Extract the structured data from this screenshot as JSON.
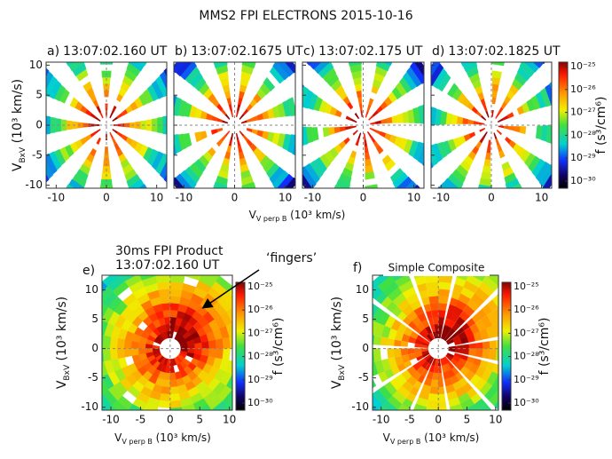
{
  "title": "MMS2 FPI ELECTRONS 2015-10-16",
  "panels": [
    {
      "label": "a)",
      "title": [
        "13:07:02.160 UT"
      ],
      "xlim": [
        -12,
        12
      ],
      "ylim": [
        -10.5,
        10.5
      ],
      "xticks": [
        -10,
        0,
        10
      ],
      "yticks": [
        10,
        5,
        0,
        -5,
        -10
      ]
    },
    {
      "label": "b)",
      "title": [
        "13:07:02.1675 UT"
      ],
      "xlim": [
        -12,
        12
      ],
      "ylim": [
        -10.5,
        10.5
      ],
      "xticks": [
        -10,
        0,
        10
      ],
      "yticks": [
        10,
        5,
        0,
        -5,
        -10
      ]
    },
    {
      "label": "c)",
      "title": [
        "13:07:02.175 UT"
      ],
      "xlim": [
        -12,
        12
      ],
      "ylim": [
        -10.5,
        10.5
      ],
      "xticks": [
        -10,
        0,
        10
      ],
      "yticks": [
        10,
        5,
        0,
        -5,
        -10
      ]
    },
    {
      "label": "d)",
      "title": [
        "13:07:02.1825 UT"
      ],
      "xlim": [
        -12,
        12
      ],
      "ylim": [
        -10.5,
        10.5
      ],
      "xticks": [
        -10,
        0,
        10
      ],
      "yticks": [
        10,
        5,
        0,
        -5,
        -10
      ]
    },
    {
      "label": "e)",
      "title": [
        "30ms FPI Product",
        "13:07:02.160 UT"
      ],
      "xlim": [
        -11.5,
        10.5
      ],
      "ylim": [
        -10.5,
        12.5
      ],
      "xticks": [
        -10,
        -5,
        0,
        5,
        10
      ],
      "yticks": [
        10,
        5,
        0,
        -5,
        -10
      ]
    },
    {
      "label": "f)",
      "title": [
        "Simple Composite"
      ],
      "xlim": [
        -11.5,
        10.5
      ],
      "ylim": [
        -10.5,
        12.5
      ],
      "xticks": [
        -10,
        -5,
        0,
        5,
        10
      ],
      "yticks": [
        10,
        5,
        0,
        -5,
        -10
      ]
    }
  ],
  "colorbar": {
    "clim": [
      1e-25,
      1e-30
    ],
    "label": "f (s³/cm⁶)",
    "ticks": [
      {
        "value": 1e-25,
        "label": "10⁻²⁵"
      },
      {
        "value": 1e-26,
        "label": "10⁻²⁶"
      },
      {
        "value": 1e-27,
        "label": "10⁻²⁷"
      },
      {
        "value": 1e-28,
        "label": "10⁻²⁸"
      },
      {
        "value": 1e-29,
        "label": "10⁻²⁹"
      },
      {
        "value": 1e-30,
        "label": "10⁻³⁰"
      }
    ]
  },
  "x_axis_label": {
    "symbol": "V",
    "subscript": "V perp B",
    "units": " (10³ km/s)"
  },
  "y_axis_label": {
    "symbol": "V",
    "subscript": "BxV",
    "units": " (10³ km/s)"
  },
  "annotation": "‘fingers’"
}
